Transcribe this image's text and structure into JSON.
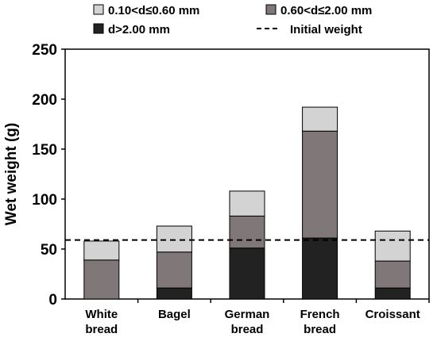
{
  "chart_data": {
    "type": "bar",
    "stacked": true,
    "categories": [
      [
        "White",
        "bread"
      ],
      [
        "Bagel"
      ],
      [
        "German",
        "bread"
      ],
      [
        "French",
        "bread"
      ],
      [
        "Croissant"
      ]
    ],
    "series": [
      {
        "name": "d>2.00 mm",
        "color": "#222222",
        "values": [
          0,
          11,
          51,
          61,
          11
        ]
      },
      {
        "name": "0.60<d≤2.00 mm",
        "color": "#7f7778",
        "values": [
          39,
          36,
          32,
          107,
          27
        ]
      },
      {
        "name": "0.10<d≤0.60 mm",
        "color": "#d3d3d3",
        "values": [
          19,
          26,
          25,
          24,
          30
        ]
      }
    ],
    "reference_line": {
      "name": "Initial weight",
      "value": 59,
      "style": "dashed"
    },
    "xlabel": "",
    "ylabel": "Wet weight (g)",
    "ylim": [
      0,
      250
    ],
    "yticks": [
      0,
      50,
      100,
      150,
      200,
      250
    ],
    "grid": false,
    "legend_position": "top",
    "legend": [
      {
        "label": "0.10<d≤0.60 mm",
        "kind": "box",
        "color": "#d3d3d3"
      },
      {
        "label": "0.60<d≤2.00 mm",
        "kind": "box",
        "color": "#7f7778"
      },
      {
        "label": "d>2.00 mm",
        "kind": "box",
        "color": "#222222"
      },
      {
        "label": "Initial weight",
        "kind": "dashed-line",
        "color": "#000000"
      }
    ]
  }
}
